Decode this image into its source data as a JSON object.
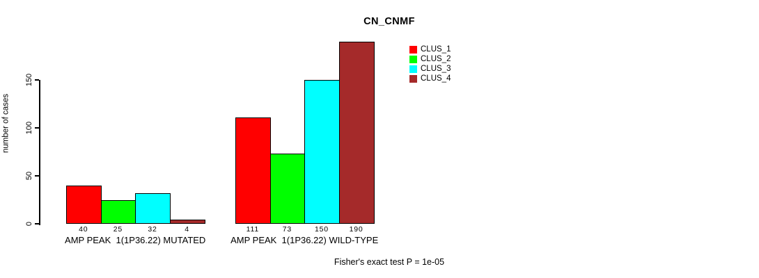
{
  "chart_data": {
    "type": "bar",
    "title": "CN_CNMF",
    "ylabel": "number of cases",
    "xlabel": "",
    "ylim": [
      0,
      197
    ],
    "yticks": [
      0,
      50,
      100,
      150
    ],
    "grid": false,
    "legend_position": "top-right",
    "bar_border_color": "#000000",
    "background_color": "#ffffff",
    "series": [
      {
        "name": "CLUS_1",
        "color": "#FF0000"
      },
      {
        "name": "CLUS_2",
        "color": "#00FF00"
      },
      {
        "name": "CLUS_3",
        "color": "#00FFFF"
      },
      {
        "name": "CLUS_4",
        "color": "#A52A2A"
      }
    ],
    "groups": [
      {
        "label": "AMP PEAK  1(1P36.22) MUTATED",
        "values": [
          40,
          25,
          32,
          4
        ]
      },
      {
        "label": "AMP PEAK  1(1P36.22) WILD-TYPE",
        "values": [
          111,
          73,
          150,
          190
        ]
      }
    ],
    "bar_value_labels_visible": true,
    "annotation": "Fisher's exact test P = 1e-05"
  }
}
